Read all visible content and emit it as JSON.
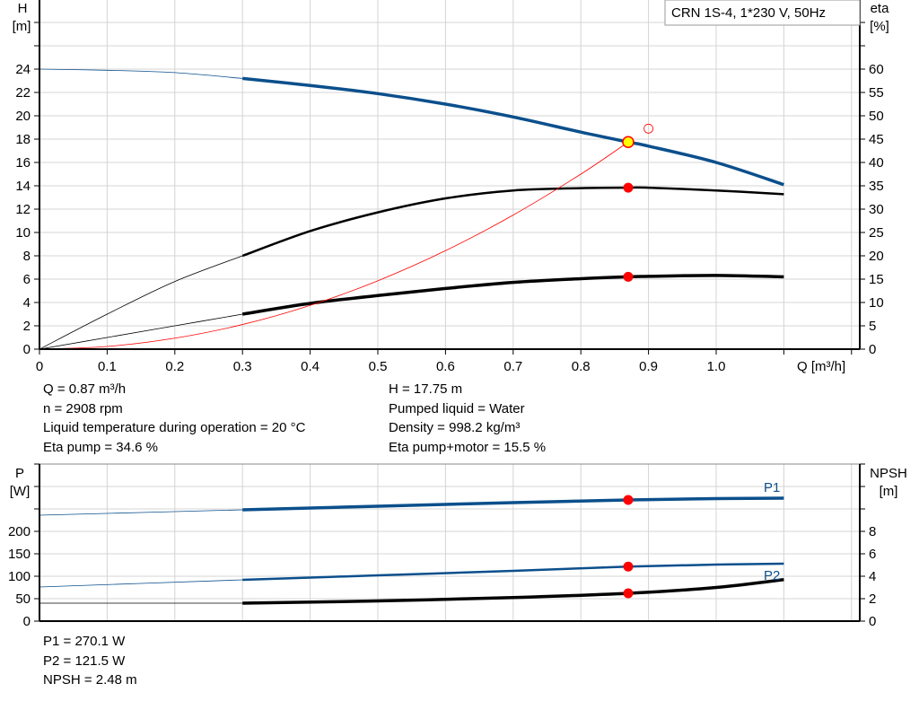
{
  "chart_data": [
    {
      "type": "line",
      "title": "CRN 1S-4, 1*230 V, 50Hz",
      "xlabel": "Q [m³/h]",
      "ylabel": "H [m]",
      "ylabel_name": "H",
      "ylabel_unit": "[m]",
      "y2label_name": "eta",
      "y2label_unit": "[%]",
      "xlim": [
        0,
        1.2
      ],
      "ylim": [
        0,
        30
      ],
      "y2lim": [
        0,
        75
      ],
      "grid": true,
      "x_ticks": [
        "0",
        "0.1",
        "0.2",
        "0.3",
        "0.4",
        "0.5",
        "0.6",
        "0.7",
        "0.8",
        "0.9",
        "1.0"
      ],
      "y_ticks": [
        "0",
        "2",
        "4",
        "6",
        "8",
        "10",
        "12",
        "14",
        "16",
        "18",
        "20",
        "22",
        "24"
      ],
      "y2_ticks": [
        "0",
        "5",
        "10",
        "15",
        "20",
        "25",
        "30",
        "35",
        "40",
        "45",
        "50",
        "55",
        "60"
      ],
      "bold_from_q": 0.3,
      "series": [
        {
          "id": "head",
          "axis": "H",
          "color": "#0b4f8c",
          "x": [
            0,
            0.1,
            0.2,
            0.3,
            0.4,
            0.5,
            0.6,
            0.7,
            0.8,
            0.87,
            0.9,
            1.0,
            1.1
          ],
          "y": [
            24,
            23.9,
            23.7,
            23.2,
            22.6,
            21.9,
            21.0,
            19.9,
            18.6,
            17.75,
            17.4,
            16.0,
            14.1
          ]
        },
        {
          "id": "eta-pump",
          "axis": "eta",
          "color": "#000000",
          "x": [
            0,
            0.1,
            0.2,
            0.3,
            0.4,
            0.5,
            0.6,
            0.7,
            0.8,
            0.87,
            0.9,
            1.0,
            1.1
          ],
          "y": [
            0,
            7.5,
            14.5,
            20,
            25.3,
            29.3,
            32.3,
            34.0,
            34.5,
            34.6,
            34.6,
            34.0,
            33.2
          ]
        },
        {
          "id": "eta-pump-motor",
          "axis": "eta",
          "color": "#000000",
          "x": [
            0,
            0.1,
            0.2,
            0.3,
            0.4,
            0.5,
            0.6,
            0.7,
            0.8,
            0.87,
            0.9,
            1.0,
            1.1
          ],
          "y": [
            0,
            2.5,
            5.0,
            7.5,
            9.8,
            11.5,
            13.0,
            14.3,
            15.1,
            15.5,
            15.6,
            15.8,
            15.5
          ]
        },
        {
          "id": "system-curve",
          "axis": "H",
          "color": "#ff0000",
          "x": [
            0,
            0.1,
            0.2,
            0.3,
            0.4,
            0.5,
            0.6,
            0.7,
            0.8,
            0.87
          ],
          "y": [
            0,
            0.23,
            0.94,
            2.11,
            3.75,
            5.86,
            8.44,
            11.49,
            15.0,
            17.75
          ]
        }
      ],
      "duty_point": {
        "q": 0.87,
        "h": 17.75,
        "color": "#ffff00"
      },
      "requested_point": {
        "q": 0.9,
        "h": 18.9
      },
      "eta_points": [
        {
          "q": 0.87,
          "eta": 34.6
        },
        {
          "q": 0.87,
          "eta": 15.5
        }
      ]
    },
    {
      "type": "line",
      "ylabel_name": "P",
      "ylabel_unit": "[W]",
      "y2label_name": "NPSH",
      "y2label_unit": "[m]",
      "xlim": [
        0,
        1.2
      ],
      "ylim": [
        0,
        350
      ],
      "y2lim": [
        0,
        14
      ],
      "grid": true,
      "y_ticks": [
        "0",
        "50",
        "100",
        "150",
        "200"
      ],
      "y2_ticks": [
        "0",
        "2",
        "4",
        "6",
        "8"
      ],
      "bold_from_q": 0.3,
      "series": [
        {
          "id": "p1",
          "name": "P1",
          "axis": "P",
          "color": "#0b4f8c",
          "x": [
            0,
            0.3,
            0.5,
            0.7,
            0.87,
            1.0,
            1.1
          ],
          "y": [
            236,
            248,
            256,
            264,
            270.1,
            273,
            274
          ]
        },
        {
          "id": "p2",
          "name": "P2",
          "axis": "P",
          "color": "#0b4f8c",
          "x": [
            0,
            0.3,
            0.5,
            0.7,
            0.87,
            1.0,
            1.1
          ],
          "y": [
            76,
            92,
            102,
            112,
            121.5,
            126,
            128
          ]
        },
        {
          "id": "npsh",
          "axis": "NPSH",
          "color": "#000000",
          "x": [
            0,
            0.3,
            0.5,
            0.7,
            0.87,
            1.0,
            1.1
          ],
          "y": [
            1.6,
            1.6,
            1.8,
            2.1,
            2.48,
            3.0,
            3.7
          ]
        }
      ],
      "op_points": [
        {
          "q": 0.87,
          "p": 270.1
        },
        {
          "q": 0.87,
          "p": 121.5
        },
        {
          "q": 0.87,
          "npsh": 2.48
        }
      ]
    }
  ],
  "info": {
    "q": "Q = 0.87 m³/h",
    "n": "n = 2908 rpm",
    "temp": "Liquid temperature during operation = 20 °C",
    "eta_pump": "Eta pump = 34.6 %",
    "h": "H = 17.75 m",
    "liquid": "Pumped liquid = Water",
    "density": "Density = 998.2 kg/m³",
    "eta_total": "Eta pump+motor = 15.5 %",
    "p1": "P1 = 270.1 W",
    "p2": "P2 = 121.5 W",
    "npsh": "NPSH = 2.48 m"
  }
}
